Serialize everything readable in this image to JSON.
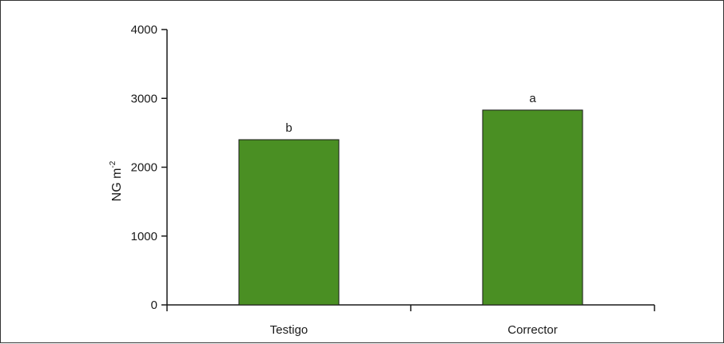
{
  "chart_data": {
    "type": "bar",
    "categories": [
      "Testigo",
      "Corrector"
    ],
    "values": [
      2400,
      2830
    ],
    "data_labels": [
      "b",
      "a"
    ],
    "title": "",
    "xlabel": "",
    "ylabel": "NG m",
    "ylabel_superscript": "-2",
    "ylim": [
      0,
      4000
    ],
    "yticks": [
      0,
      1000,
      2000,
      3000,
      4000
    ],
    "ytick_labels": [
      "0",
      "1000",
      "2000",
      "3000",
      "4000"
    ],
    "grid": false,
    "bar_color": "#4a8f23",
    "bar_edge_color": "#1a1a1a"
  }
}
